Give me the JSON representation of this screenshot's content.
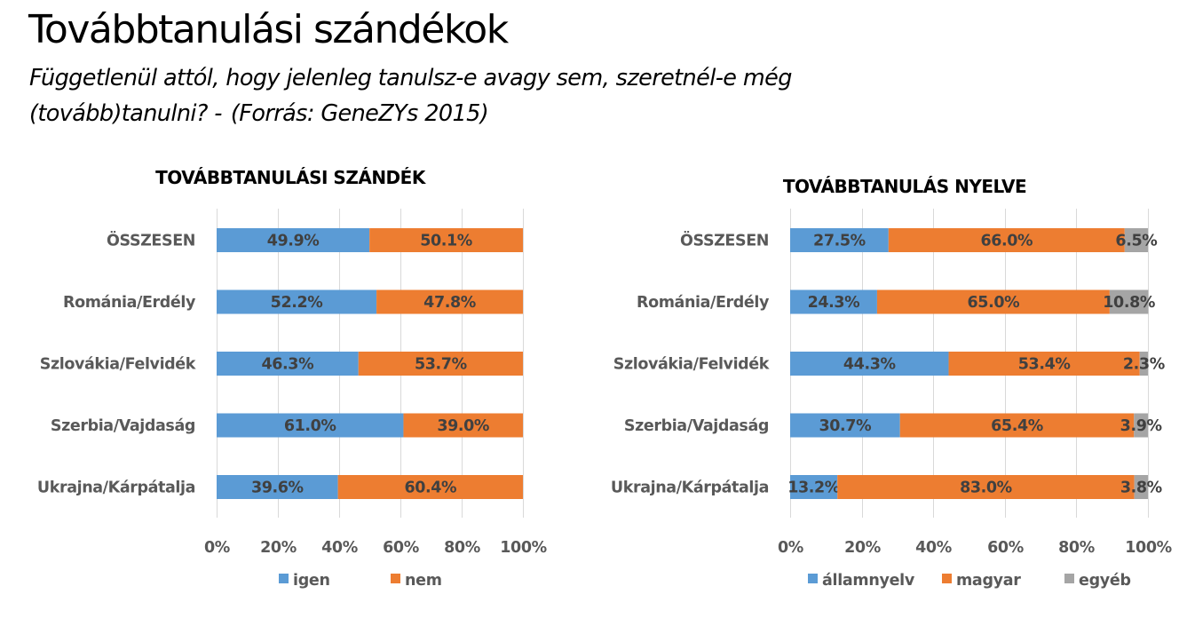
{
  "header": {
    "title": "Továbbtanulási szándékok",
    "subtitle_line1": "Függetlenül attól, hogy jelenleg tanulsz-e avagy sem, szeretnél-e még",
    "subtitle_line2": "(tovább)tanulni? -",
    "source": "(Forrás: GeneZYs 2015)"
  },
  "chart_data": [
    {
      "type": "bar",
      "orientation": "horizontal",
      "stacked": "percent",
      "title": "TOVÁBBTANULÁSI SZÁNDÉK",
      "categories": [
        "ÖSSZESEN",
        "Románia/Erdély",
        "Szlovákia/Felvidék",
        "Szerbia/Vajdaság",
        "Ukrajna/Kárpátalja"
      ],
      "series": [
        {
          "name": "igen",
          "color": "#5b9bd5",
          "values": [
            49.9,
            52.2,
            46.3,
            61.0,
            39.6
          ],
          "labels": [
            "49.9%",
            "52.2%",
            "46.3%",
            "61.0%",
            "39.6%"
          ]
        },
        {
          "name": "nem",
          "color": "#ed7d31",
          "values": [
            50.1,
            47.8,
            53.7,
            39.0,
            60.4
          ],
          "labels": [
            "50.1%",
            "47.8%",
            "53.7%",
            "39.0%",
            "60.4%"
          ]
        }
      ],
      "xlim": [
        0,
        100
      ],
      "xticks": [
        "0%",
        "20%",
        "40%",
        "60%",
        "80%",
        "100%"
      ],
      "grid": true,
      "legend": "bottom"
    },
    {
      "type": "bar",
      "orientation": "horizontal",
      "stacked": "percent",
      "title": "TOVÁBBTANULÁS NYELVE",
      "categories": [
        "ÖSSZESEN",
        "Románia/Erdély",
        "Szlovákia/Felvidék",
        "Szerbia/Vajdaság",
        "Ukrajna/Kárpátalja"
      ],
      "series": [
        {
          "name": "államnyelv",
          "color": "#5b9bd5",
          "values": [
            27.5,
            24.3,
            44.3,
            30.7,
            13.2
          ],
          "labels": [
            "27.5%",
            "24.3%",
            "44.3%",
            "30.7%",
            "13.2%"
          ]
        },
        {
          "name": "magyar",
          "color": "#ed7d31",
          "values": [
            66.0,
            65.0,
            53.4,
            65.4,
            83.0
          ],
          "labels": [
            "66.0%",
            "65.0%",
            "53.4%",
            "65.4%",
            "83.0%"
          ]
        },
        {
          "name": "egyéb",
          "color": "#a5a5a5",
          "values": [
            6.5,
            10.8,
            2.3,
            3.9,
            3.8
          ],
          "labels": [
            "6.5%",
            "10.8%",
            "2.3%",
            "3.9%",
            "3.8%"
          ]
        }
      ],
      "xlim": [
        0,
        100
      ],
      "xticks": [
        "0%",
        "20%",
        "40%",
        "60%",
        "80%",
        "100%"
      ],
      "grid": true,
      "legend": "bottom"
    }
  ]
}
